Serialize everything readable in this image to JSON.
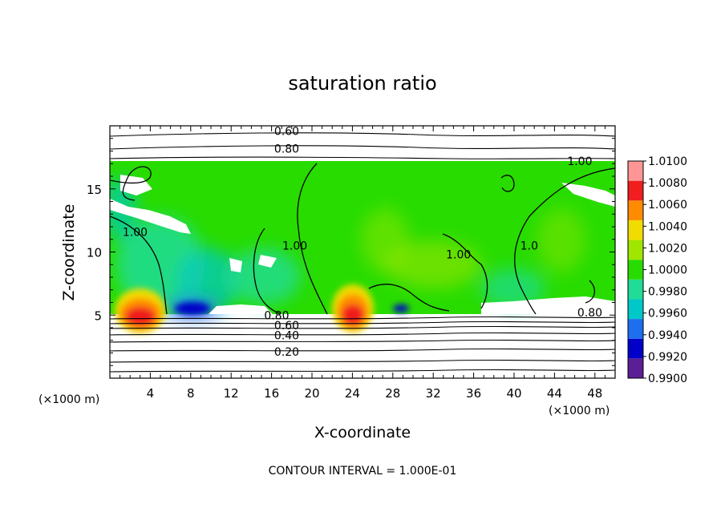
{
  "chart_data": {
    "type": "heatmap",
    "title": "saturation ratio",
    "xlabel": "X-coordinate",
    "ylabel": "Z-coordinate",
    "x_unit": "(×1000 m)",
    "x_unit_right": "(×1000 m)",
    "footer": "CONTOUR INTERVAL = 1.000E-01",
    "xlim": [
      0,
      50
    ],
    "ylim": [
      0,
      20
    ],
    "x_ticks": [
      4,
      8,
      12,
      16,
      20,
      24,
      28,
      32,
      36,
      40,
      44,
      48
    ],
    "x_tick_labels": [
      "4",
      "8",
      "12",
      "16",
      "20",
      "24",
      "28",
      "32",
      "36",
      "40",
      "44",
      "48"
    ],
    "y_ticks": [
      5,
      10,
      15
    ],
    "y_tick_labels": [
      "5",
      "10",
      "15"
    ],
    "colorbar": {
      "levels": [
        0.99,
        0.992,
        0.994,
        0.996,
        0.998,
        1.0,
        1.002,
        1.004,
        1.006,
        1.008,
        1.01
      ],
      "labels": [
        "0.9900",
        "0.9920",
        "0.9940",
        "0.9960",
        "0.9980",
        "1.0000",
        "1.0020",
        "1.0040",
        "1.0060",
        "1.0080",
        "1.0100"
      ],
      "colors": [
        "#5a1e96",
        "#0000c8",
        "#1e6ef0",
        "#00c8c8",
        "#20dc96",
        "#28dc00",
        "#a0e600",
        "#f0dc00",
        "#ff8c00",
        "#f01e1e",
        "#ff9696"
      ]
    },
    "contour_labels": [
      {
        "text": "0.60",
        "x": 17.5,
        "y": 19.6
      },
      {
        "text": "0.80",
        "x": 17.5,
        "y": 18.2
      },
      {
        "text": "1.00",
        "x": 46.5,
        "y": 17.2
      },
      {
        "text": "1.00",
        "x": 2.5,
        "y": 11.6
      },
      {
        "text": "1.00",
        "x": 18.3,
        "y": 10.5
      },
      {
        "text": "1.00",
        "x": 34.5,
        "y": 9.8
      },
      {
        "text": "1.0",
        "x": 41.5,
        "y": 10.5
      },
      {
        "text": "0.80",
        "x": 16.5,
        "y": 5.0
      },
      {
        "text": "0.60",
        "x": 17.5,
        "y": 4.2
      },
      {
        "text": "0.40",
        "x": 17.5,
        "y": 3.4
      },
      {
        "text": "0.20",
        "x": 17.5,
        "y": 2.1
      },
      {
        "text": "0.80",
        "x": 47.5,
        "y": 5.2
      }
    ]
  }
}
